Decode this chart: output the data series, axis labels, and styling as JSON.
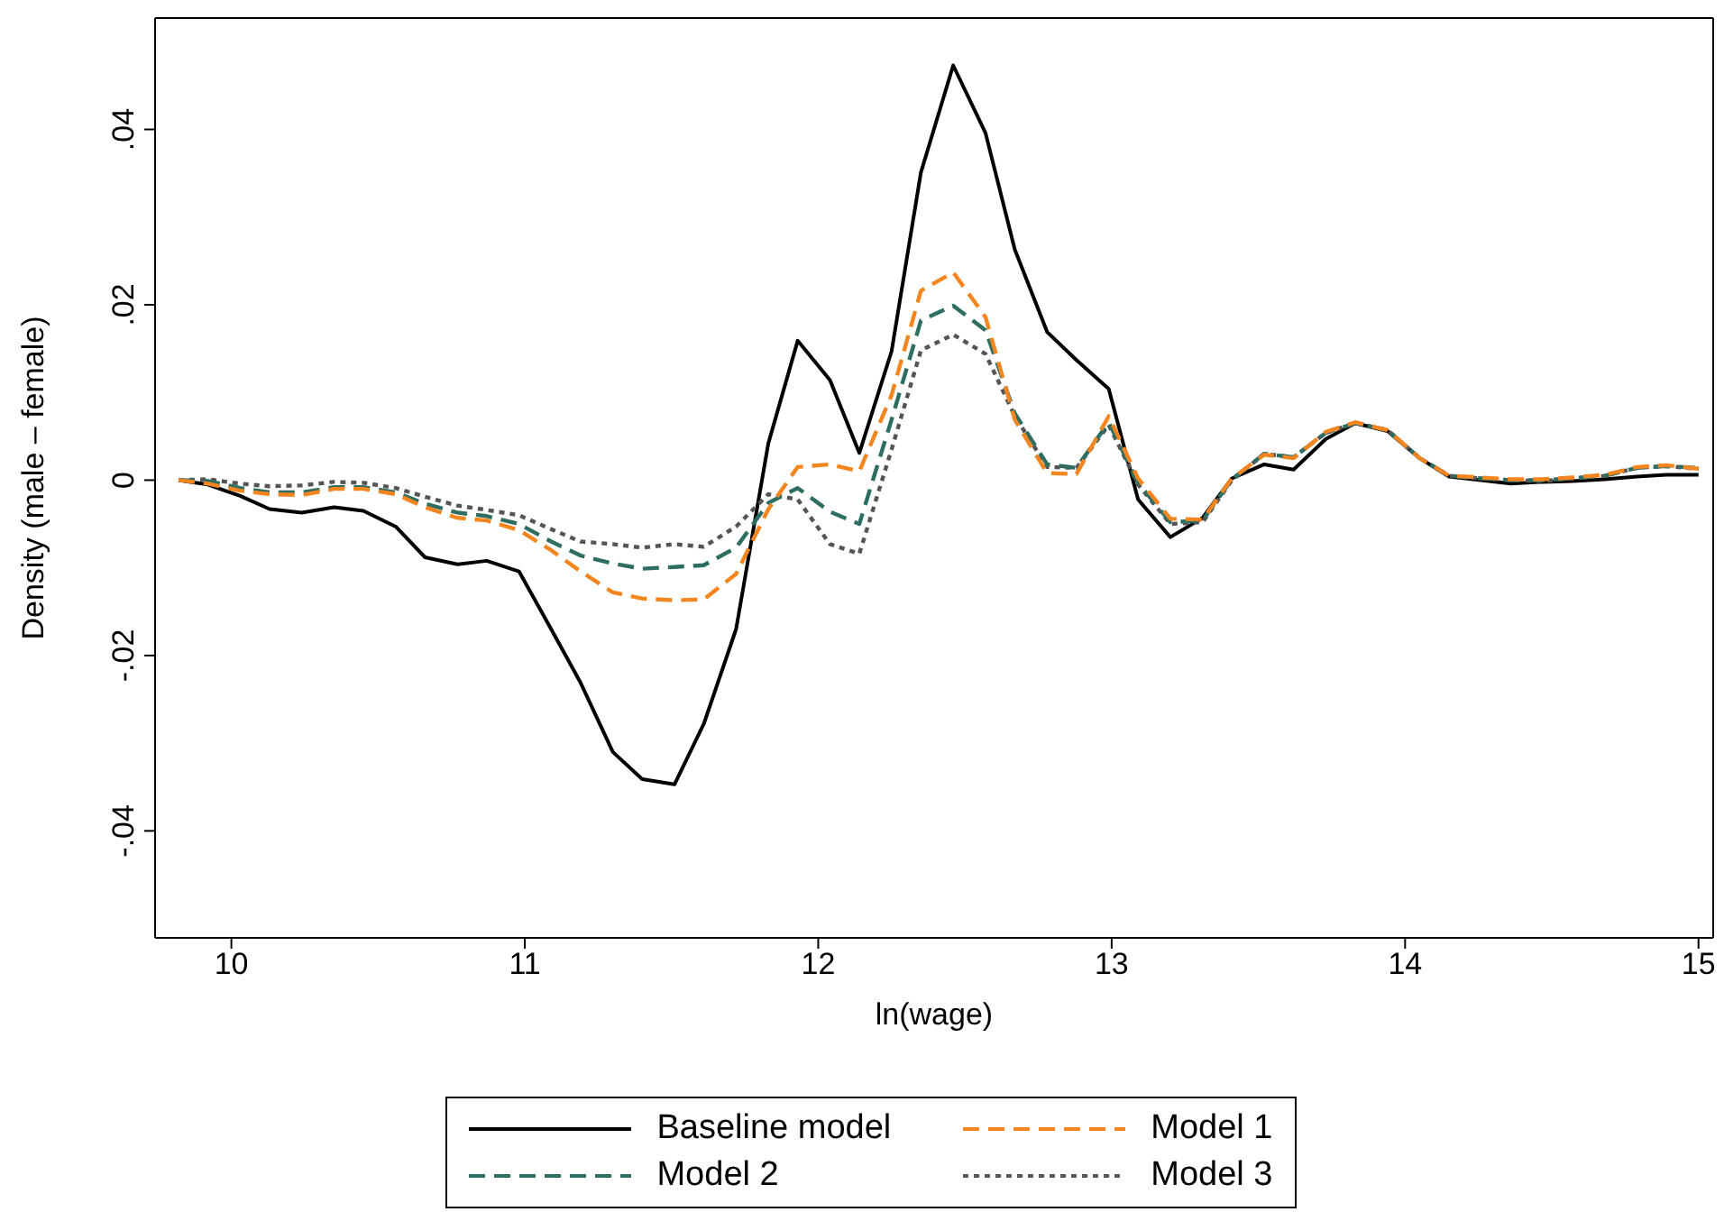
{
  "chart_data": {
    "type": "line",
    "xlabel": "ln(wage)",
    "ylabel": "Density (male – female)",
    "x": [
      9.82,
      9.92,
      10.03,
      10.13,
      10.24,
      10.35,
      10.45,
      10.56,
      10.66,
      10.77,
      10.87,
      10.98,
      11.09,
      11.19,
      11.3,
      11.4,
      11.51,
      11.61,
      11.72,
      11.83,
      11.93,
      12.04,
      12.14,
      12.25,
      12.35,
      12.46,
      12.57,
      12.67,
      12.78,
      12.88,
      12.99,
      13.09,
      13.2,
      13.31,
      13.41,
      13.52,
      13.62,
      13.73,
      13.83,
      13.94,
      14.05,
      14.15,
      14.26,
      14.36,
      14.47,
      14.57,
      14.68,
      14.79,
      14.89,
      15.0
    ],
    "series": [
      {
        "name": "Baseline model",
        "color": "#000000",
        "line_style": "solid",
        "values": [
          0,
          -0.0005,
          -0.0018,
          -0.0033,
          -0.0037,
          -0.0031,
          -0.0035,
          -0.0053,
          -0.0088,
          -0.0096,
          -0.0092,
          -0.0104,
          -0.017,
          -0.0231,
          -0.031,
          -0.0341,
          -0.0347,
          -0.0278,
          -0.017,
          0.0042,
          0.0159,
          0.0114,
          0.0031,
          0.0147,
          0.0351,
          0.0473,
          0.0396,
          0.0263,
          0.0169,
          0.0137,
          0.0104,
          -0.0022,
          -0.0065,
          -0.0043,
          0.0002,
          0.0018,
          0.0012,
          0.0047,
          0.0065,
          0.0056,
          0.0025,
          0.0004,
          0,
          -0.0004,
          -0.0002,
          -0.0001,
          0.0001,
          0.0004,
          0.0006,
          0.0006
        ]
      },
      {
        "name": "Model 1",
        "color": "#f5861f",
        "line_style": "dashed",
        "values": [
          0,
          -0.0004,
          -0.0012,
          -0.0016,
          -0.0017,
          -0.001,
          -0.001,
          -0.0016,
          -0.0031,
          -0.0043,
          -0.0046,
          -0.0057,
          -0.008,
          -0.0104,
          -0.0128,
          -0.0135,
          -0.0137,
          -0.0136,
          -0.0107,
          -0.0033,
          0.0015,
          0.0018,
          0.001,
          0.0097,
          0.0216,
          0.0237,
          0.0186,
          0.0069,
          0.0008,
          0.0007,
          0.0073,
          0.0002,
          -0.0044,
          -0.0045,
          0.0002,
          0.0029,
          0.0025,
          0.0055,
          0.0066,
          0.0057,
          0.0025,
          0.0005,
          0.0003,
          0.0001,
          0.0001,
          0.0003,
          0.0006,
          0.0015,
          0.0017,
          0.0013
        ]
      },
      {
        "name": "Model 2",
        "color": "#2e6e62",
        "line_style": "dashed",
        "values": [
          0,
          -0.0001,
          -0.0009,
          -0.0014,
          -0.0014,
          -0.0008,
          -0.0008,
          -0.0014,
          -0.0027,
          -0.0037,
          -0.0041,
          -0.005,
          -0.007,
          -0.0086,
          -0.0095,
          -0.0101,
          -0.0099,
          -0.0097,
          -0.0077,
          -0.0026,
          -0.0009,
          -0.0036,
          -0.005,
          0.0069,
          0.0182,
          0.0199,
          0.0171,
          0.0076,
          0.0018,
          0.0014,
          0.0066,
          -0.0003,
          -0.0048,
          -0.0046,
          0.0001,
          0.003,
          0.0026,
          0.0054,
          0.0065,
          0.0057,
          0.0025,
          0.0005,
          0.0002,
          0,
          0,
          0.0002,
          0.0005,
          0.0014,
          0.0016,
          0.0014
        ]
      },
      {
        "name": "Model 3",
        "color": "#555555",
        "line_style": "dotted",
        "values": [
          0,
          0.0001,
          -0.0004,
          -0.0007,
          -0.0006,
          -0.0002,
          -0.0003,
          -0.0009,
          -0.0019,
          -0.0029,
          -0.0034,
          -0.004,
          -0.0056,
          -0.007,
          -0.0073,
          -0.0077,
          -0.0073,
          -0.0076,
          -0.0053,
          -0.0016,
          -0.0022,
          -0.0073,
          -0.0084,
          0.0035,
          0.0148,
          0.0166,
          0.0144,
          0.0073,
          0.0015,
          0.0014,
          0.0063,
          -0.0005,
          -0.005,
          -0.0048,
          0,
          0.003,
          0.0026,
          0.0054,
          0.0065,
          0.0057,
          0.0025,
          0.0005,
          0.0002,
          0,
          -0.0001,
          0.0002,
          0.0005,
          0.0014,
          0.0016,
          0.0013
        ]
      }
    ],
    "xlim": [
      9.74,
      15.05
    ],
    "xticks": [
      10,
      11,
      12,
      13,
      14,
      15
    ],
    "ylim": [
      -0.0522,
      0.0527
    ],
    "yticks": [
      {
        "value": -0.04,
        "label": "-.04"
      },
      {
        "value": -0.02,
        "label": "-.02"
      },
      {
        "value": 0,
        "label": "0"
      },
      {
        "value": 0.02,
        "label": ".02"
      },
      {
        "value": 0.04,
        "label": ".04"
      }
    ],
    "grid": false,
    "legend": "bottom",
    "marker": "none"
  }
}
